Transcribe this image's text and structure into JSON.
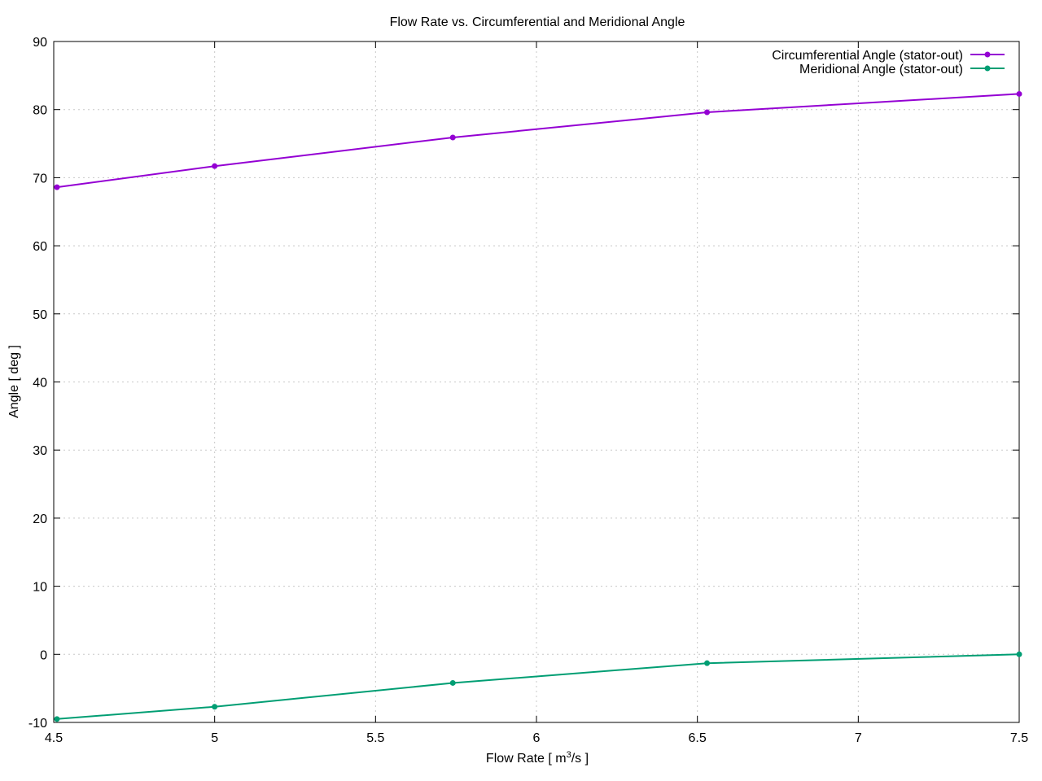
{
  "chart_data": {
    "type": "line",
    "title": "Flow Rate vs. Circumferential and Meridional Angle",
    "xlabel_prefix": "Flow Rate [ m",
    "xlabel_sup": "3",
    "xlabel_suffix": "/s ]",
    "ylabel": "Angle [ deg ]",
    "xlim": [
      4.5,
      7.5
    ],
    "ylim": [
      -10,
      90
    ],
    "xticks": [
      "4.5",
      "5",
      "5.5",
      "6",
      "6.5",
      "7",
      "7.5"
    ],
    "yticks": [
      "-10",
      "0",
      "10",
      "20",
      "30",
      "40",
      "50",
      "60",
      "70",
      "80",
      "90"
    ],
    "grid": true,
    "legend_position": "top-right",
    "series": [
      {
        "name": "Circumferential Angle (stator-out)",
        "color": "#9400d3",
        "x": [
          4.51,
          5.0,
          5.74,
          6.53,
          7.5
        ],
        "y": [
          68.6,
          71.7,
          75.9,
          79.6,
          82.3
        ]
      },
      {
        "name": "Meridional Angle (stator-out)",
        "color": "#009e73",
        "x": [
          4.51,
          5.0,
          5.74,
          6.53,
          7.5
        ],
        "y": [
          -9.5,
          -7.7,
          -4.2,
          -1.3,
          0.0
        ]
      }
    ]
  }
}
